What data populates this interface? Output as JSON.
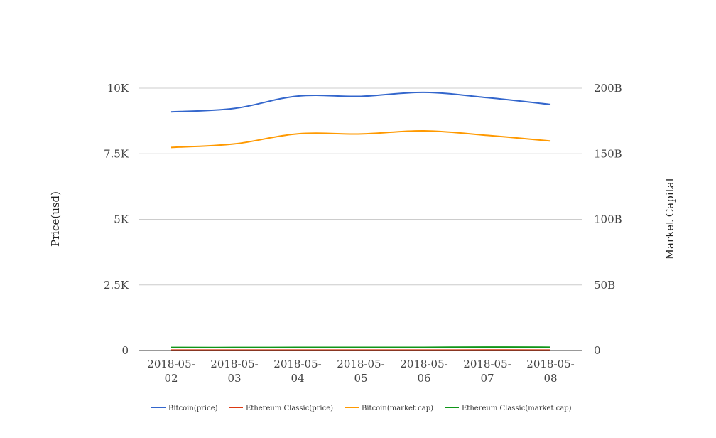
{
  "chart_data": {
    "type": "line",
    "x": [
      "2018-05-02",
      "2018-05-03",
      "2018-05-04",
      "2018-05-05",
      "2018-05-06",
      "2018-05-07",
      "2018-05-08"
    ],
    "x_tick_labels": [
      [
        "2018-05-",
        "02"
      ],
      [
        "2018-05-",
        "03"
      ],
      [
        "2018-05-",
        "04"
      ],
      [
        "2018-05-",
        "05"
      ],
      [
        "2018-05-",
        "06"
      ],
      [
        "2018-05-",
        "07"
      ],
      [
        "2018-05-",
        "08"
      ]
    ],
    "ylabel_left": "Price(usd)",
    "ylabel_right": "Market Capital",
    "ylim_left": [
      0,
      10000
    ],
    "ylim_right": [
      0,
      200000000000
    ],
    "left_ticks": [
      {
        "value": 0,
        "label": "0"
      },
      {
        "value": 2500,
        "label": "2.5K"
      },
      {
        "value": 5000,
        "label": "5K"
      },
      {
        "value": 7500,
        "label": "7.5K"
      },
      {
        "value": 10000,
        "label": "10K"
      }
    ],
    "right_ticks": [
      {
        "value": 0,
        "label": "0"
      },
      {
        "value": 50000000000,
        "label": "50B"
      },
      {
        "value": 100000000000,
        "label": "100B"
      },
      {
        "value": 150000000000,
        "label": "150B"
      },
      {
        "value": 200000000000,
        "label": "200B"
      }
    ],
    "grid": true,
    "legend_position": "bottom",
    "series": [
      {
        "name": "Bitcoin(price)",
        "axis": "left",
        "color": "#3366cc",
        "values": [
          9100,
          9230,
          9700,
          9690,
          9840,
          9640,
          9380
        ]
      },
      {
        "name": "Ethereum Classic(price)",
        "axis": "left",
        "color": "#dc3912",
        "values": [
          17,
          17,
          18,
          18,
          18,
          19,
          18
        ]
      },
      {
        "name": "Bitcoin(market cap)",
        "axis": "right",
        "color": "#ff9900",
        "values": [
          154800000000,
          157500000000,
          165200000000,
          165100000000,
          167500000000,
          164000000000,
          159700000000
        ]
      },
      {
        "name": "Ethereum Classic(market cap)",
        "axis": "right",
        "color": "#109618",
        "values": [
          2350000000,
          2340000000,
          2450000000,
          2450000000,
          2450000000,
          2650000000,
          2520000000
        ]
      }
    ]
  }
}
